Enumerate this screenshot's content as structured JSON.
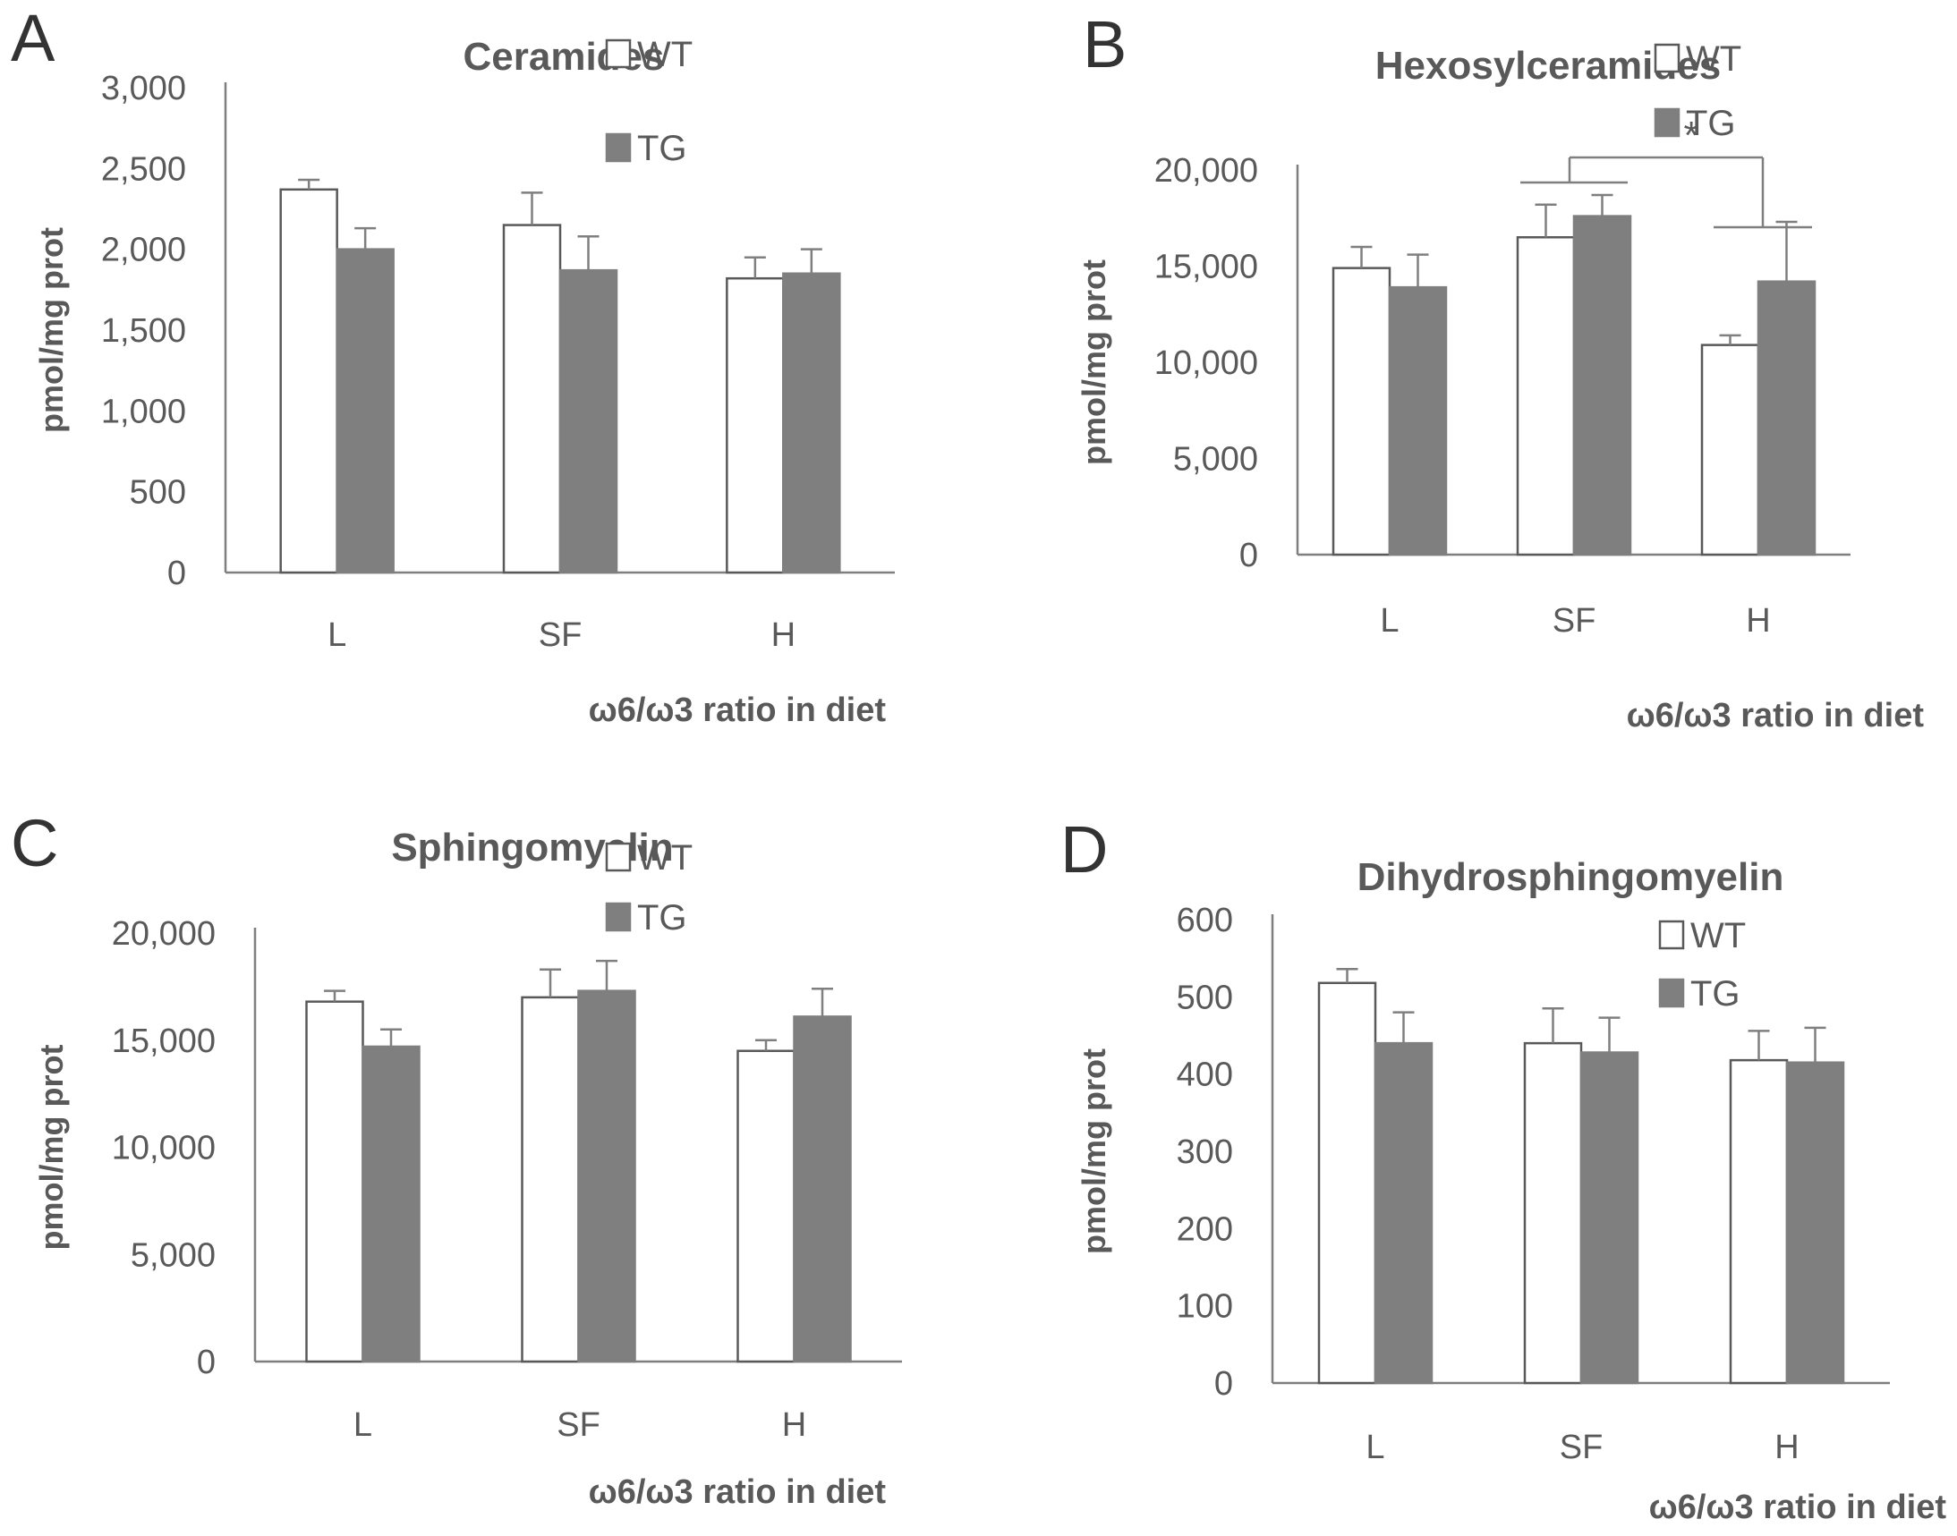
{
  "colors": {
    "wt_fill": "#ffffff",
    "wt_stroke": "#595959",
    "tg_fill": "#7f7f7f",
    "axis": "#7f7f7f",
    "text": "#595959"
  },
  "chart_data": [
    {
      "panel": "A",
      "type": "bar",
      "title": "Ceramides",
      "ylabel": "pmol/mg prot",
      "xlabel": "ω6/ω3 ratio in diet",
      "categories": [
        "L",
        "SF",
        "H"
      ],
      "ylim": [
        0,
        3000
      ],
      "yticks": [
        0,
        500,
        1000,
        1500,
        2000,
        2500,
        3000
      ],
      "ytick_labels": [
        "0",
        "500",
        "1,000",
        "1,500",
        "2,000",
        "2,500",
        "3,000"
      ],
      "legend_position": "top-right",
      "series": [
        {
          "name": "WT",
          "values": [
            2370,
            2150,
            1820
          ],
          "errors": [
            60,
            200,
            130
          ]
        },
        {
          "name": "TG",
          "values": [
            2000,
            1870,
            1850
          ],
          "errors": [
            130,
            210,
            150
          ]
        }
      ]
    },
    {
      "panel": "B",
      "type": "bar",
      "title": "Hexosylceramides",
      "ylabel": "pmol/mg prot",
      "xlabel": "ω6/ω3 ratio in diet",
      "categories": [
        "L",
        "SF",
        "H"
      ],
      "ylim": [
        0,
        20000
      ],
      "yticks": [
        0,
        5000,
        10000,
        15000,
        20000
      ],
      "ytick_labels": [
        "0",
        "5,000",
        "10,000",
        "15,000",
        "20,000"
      ],
      "legend_position": "top-right",
      "series": [
        {
          "name": "WT",
          "values": [
            14900,
            16500,
            10900
          ],
          "errors": [
            1100,
            1700,
            500
          ]
        },
        {
          "name": "TG",
          "values": [
            13900,
            17600,
            14200
          ],
          "errors": [
            1700,
            1100,
            3100
          ]
        }
      ],
      "annotations": [
        {
          "text": "*",
          "between": [
            "SF",
            "H"
          ]
        }
      ]
    },
    {
      "panel": "C",
      "type": "bar",
      "title": "Sphingomyelin",
      "ylabel": "pmol/mg prot",
      "xlabel": "ω6/ω3 ratio in diet",
      "categories": [
        "L",
        "SF",
        "H"
      ],
      "ylim": [
        0,
        20000
      ],
      "yticks": [
        0,
        5000,
        10000,
        15000,
        20000
      ],
      "ytick_labels": [
        "0",
        "5,000",
        "10,000",
        "15,000",
        "20,000"
      ],
      "legend_position": "top-right",
      "series": [
        {
          "name": "WT",
          "values": [
            16800,
            17000,
            14500
          ],
          "errors": [
            500,
            1300,
            500
          ]
        },
        {
          "name": "TG",
          "values": [
            14700,
            17300,
            16100
          ],
          "errors": [
            800,
            1400,
            1300
          ]
        }
      ]
    },
    {
      "panel": "D",
      "type": "bar",
      "title": "Dihydrosphingomyelin",
      "ylabel": "pmol/mg prot",
      "xlabel": "ω6/ω3 ratio in diet",
      "categories": [
        "L",
        "SF",
        "H"
      ],
      "ylim": [
        0,
        600
      ],
      "yticks": [
        0,
        100,
        200,
        300,
        400,
        500,
        600
      ],
      "ytick_labels": [
        "0",
        "100",
        "200",
        "300",
        "400",
        "500",
        "600"
      ],
      "legend_position": "top-right",
      "series": [
        {
          "name": "WT",
          "values": [
            518,
            440,
            418
          ],
          "errors": [
            18,
            45,
            38
          ]
        },
        {
          "name": "TG",
          "values": [
            440,
            428,
            415
          ],
          "errors": [
            40,
            45,
            45
          ]
        }
      ]
    }
  ]
}
